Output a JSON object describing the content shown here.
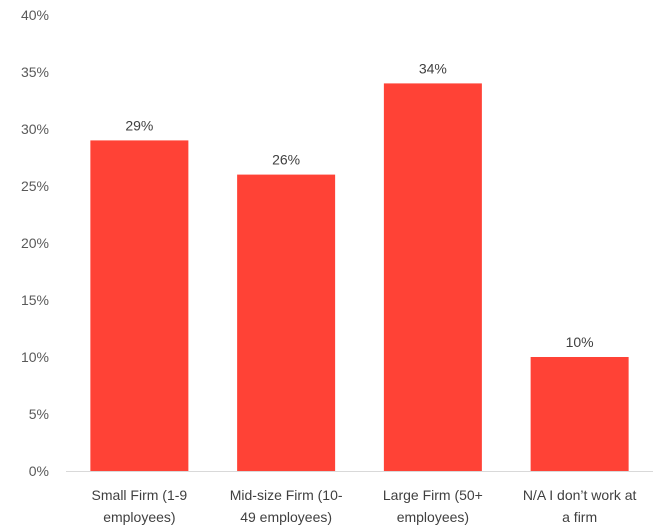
{
  "chart_data": {
    "type": "bar",
    "categories": [
      [
        "Small Firm (1-9",
        "employees)"
      ],
      [
        "Mid-size Firm (10-",
        "49 employees)"
      ],
      [
        "Large Firm (50+",
        "employees)"
      ],
      [
        "N/A I don’t work at",
        "a firm"
      ]
    ],
    "values": [
      29,
      26,
      34,
      10
    ],
    "data_labels": [
      "29%",
      "26%",
      "34%",
      "10%"
    ],
    "ylim": [
      0,
      40
    ],
    "yticks": [
      0,
      5,
      10,
      15,
      20,
      25,
      30,
      35,
      40
    ],
    "ytick_labels": [
      "0%",
      "5%",
      "10%",
      "15%",
      "20%",
      "25%",
      "30%",
      "35%",
      "40%"
    ],
    "title": "",
    "xlabel": "",
    "ylabel": "",
    "grid": false,
    "legend": "none",
    "colors": {
      "bar": "#FF4236",
      "axis": "#D9D9D9"
    }
  }
}
